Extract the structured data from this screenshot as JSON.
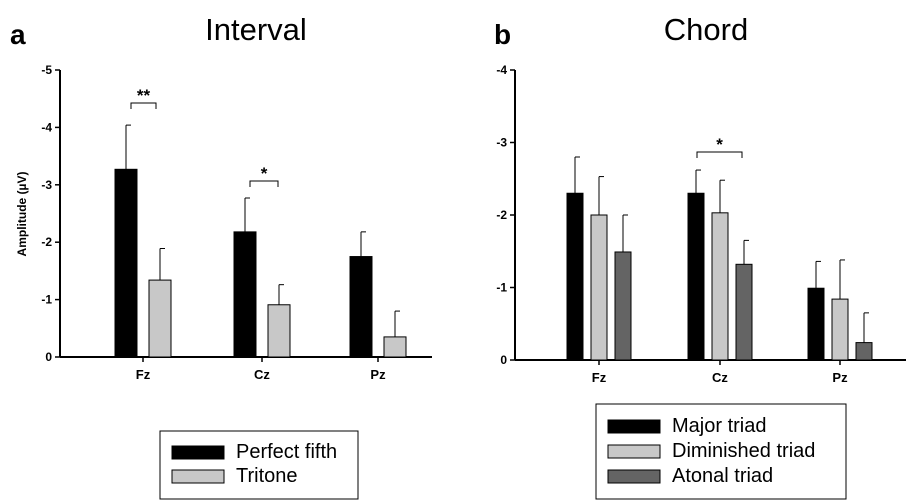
{
  "chart_data": [
    {
      "panel": "a",
      "title": "Interval",
      "type": "bar",
      "ylabel": "Amplitude (µV)",
      "ylim": [
        0,
        -5
      ],
      "yticks": [
        "0",
        "-1",
        "-2",
        "-3",
        "-4",
        "-5"
      ],
      "categories": [
        "Fz",
        "Cz",
        "Pz"
      ],
      "series": [
        {
          "name": "Perfect fifth",
          "color": "#000000",
          "values": [
            -3.27,
            -2.18,
            -1.75
          ],
          "errors": [
            0.77,
            0.59,
            0.43
          ]
        },
        {
          "name": "Tritone",
          "color": "#c8c8c8",
          "values": [
            -1.34,
            -0.91,
            -0.35
          ],
          "errors": [
            0.55,
            0.35,
            0.45
          ]
        }
      ],
      "significance": [
        {
          "category": "Fz",
          "label": "**"
        },
        {
          "category": "Cz",
          "label": "*"
        }
      ],
      "legend_position": "bottom-center"
    },
    {
      "panel": "b",
      "title": "Chord",
      "type": "bar",
      "ylabel": "",
      "ylim": [
        0,
        -4
      ],
      "yticks": [
        "0",
        "-1",
        "-2",
        "-3",
        "-4"
      ],
      "categories": [
        "Fz",
        "Cz",
        "Pz"
      ],
      "series": [
        {
          "name": "Major triad",
          "color": "#000000",
          "values": [
            -2.3,
            -2.3,
            -0.99
          ],
          "errors": [
            0.5,
            0.32,
            0.37
          ]
        },
        {
          "name": "Diminished triad",
          "color": "#c8c8c8",
          "values": [
            -2.0,
            -2.03,
            -0.84
          ],
          "errors": [
            0.53,
            0.45,
            0.54
          ]
        },
        {
          "name": "Atonal triad",
          "color": "#646464",
          "values": [
            -1.49,
            -1.32,
            -0.24
          ],
          "errors": [
            0.51,
            0.33,
            0.41
          ]
        }
      ],
      "significance": [
        {
          "category": "Cz",
          "label": "*"
        }
      ],
      "legend_position": "bottom-center"
    }
  ]
}
